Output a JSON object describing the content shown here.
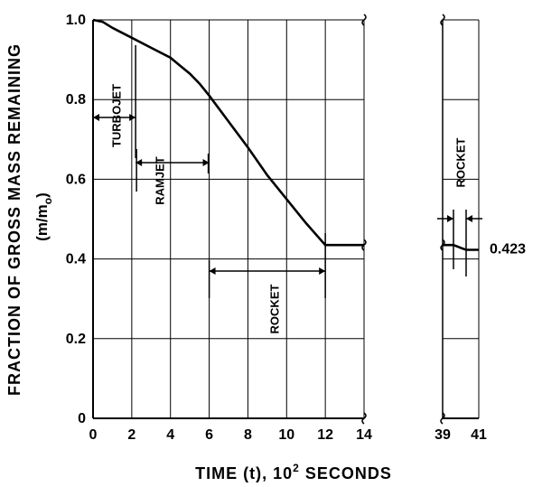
{
  "chart_data": {
    "type": "line",
    "title": "",
    "xlabel": "TIME (t), 10",
    "xlabel_sup": "2",
    "xlabel_tail": "SECONDS",
    "ylabel": "FRACTION OF GROSS MASS REMAINING",
    "ylabel2_pre": "(m/m",
    "ylabel2_sub": "o",
    "ylabel2_post": ")",
    "xlim": [
      0,
      14
    ],
    "xlim_break": [
      39,
      41
    ],
    "ylim": [
      0,
      1.0
    ],
    "grid": true,
    "x_ticks": [
      "0",
      "2",
      "4",
      "6",
      "8",
      "10",
      "12",
      "14"
    ],
    "x_ticks_break": [
      "39",
      "41"
    ],
    "y_ticks": [
      "0",
      "0.2",
      "0.4",
      "0.6",
      "0.8",
      "1.0"
    ],
    "series": [
      {
        "x": [
          0,
          0.5,
          1,
          2,
          3,
          4,
          4.5,
          5,
          5.5,
          6,
          7,
          8,
          9,
          10,
          11,
          12,
          14
        ],
        "y": [
          1.0,
          0.995,
          0.98,
          0.955,
          0.93,
          0.905,
          0.885,
          0.865,
          0.84,
          0.81,
          0.745,
          0.68,
          0.61,
          0.55,
          0.49,
          0.435,
          0.435
        ]
      },
      {
        "x": [
          39,
          39.6,
          40,
          40.3,
          41
        ],
        "y": [
          0.435,
          0.435,
          0.428,
          0.423,
          0.423
        ]
      }
    ],
    "phases": [
      {
        "label": "TURBOJET",
        "start": 0,
        "end": 2.2
      },
      {
        "label": "RAMJET",
        "start": 2.2,
        "end": 6
      },
      {
        "label": "ROCKET",
        "start": 6,
        "end": 12
      },
      {
        "label": "ROCKET",
        "start": 39.6,
        "end": 40.3
      }
    ],
    "annotations": [
      {
        "text": "0.423",
        "x": 41,
        "y": 0.423
      }
    ]
  }
}
